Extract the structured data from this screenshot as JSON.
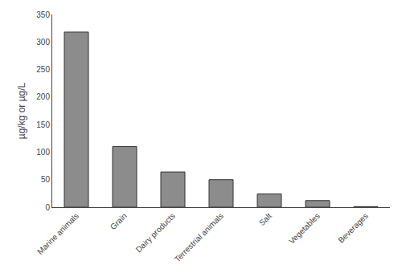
{
  "chart_data": {
    "type": "bar",
    "categories": [
      "Marine animals",
      "Grain",
      "Dairy products",
      "Terrestrial animals",
      "Salt",
      "Vegetables",
      "Beverages"
    ],
    "values": [
      318,
      110,
      64,
      50,
      24,
      12,
      1
    ],
    "color": "#8c8c8c",
    "ylabel": "µg/kg or µg/L",
    "ylim": [
      0,
      350
    ],
    "yticks": [
      0,
      50,
      100,
      150,
      200,
      250,
      300,
      350
    ],
    "grid": false
  }
}
